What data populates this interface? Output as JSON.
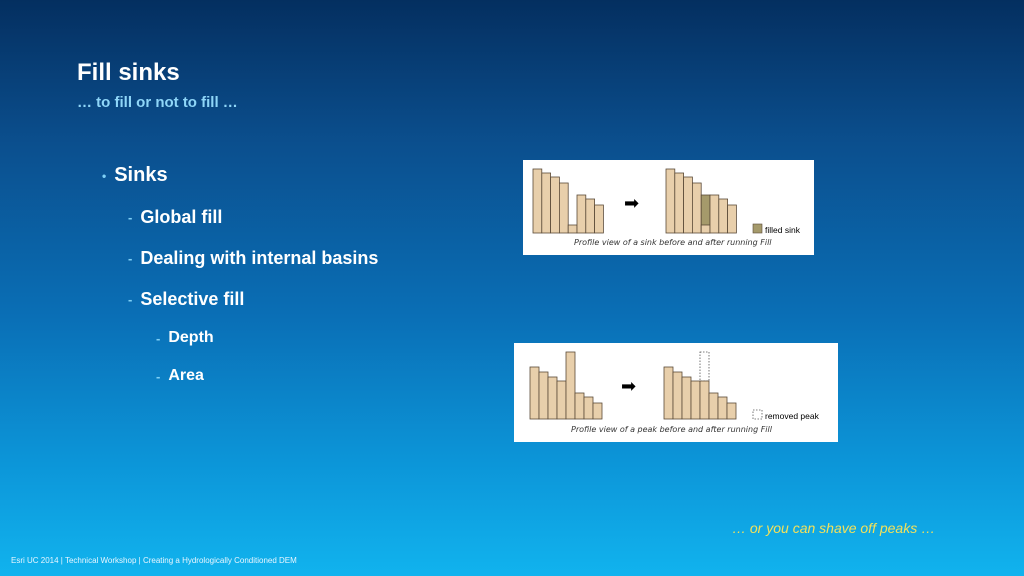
{
  "slide": {
    "title": "Fill sinks",
    "subtitle": "… to fill or not to fill …",
    "bullets": {
      "sinks": "Sinks",
      "global_fill": "Global fill",
      "internal_basins": "Dealing with internal basins",
      "selective_fill": "Selective fill",
      "depth": "Depth",
      "area": "Area"
    },
    "note": "… or you can shave off peaks …",
    "footer": {
      "left": "Esri UC 2014 | Technical Workshop |",
      "right": "Creating a Hydrologically Conditioned DEM"
    }
  },
  "figures": {
    "sink": {
      "caption": "Profile view of a sink before and after running Fill",
      "legend": "filled sink",
      "arrow": "➡",
      "before_heights": [
        64,
        60,
        56,
        50,
        8,
        38,
        34,
        28
      ],
      "after_heights": [
        64,
        60,
        56,
        50,
        38,
        38,
        34,
        28
      ],
      "filled_index": 4
    },
    "peak": {
      "caption": "Profile view of a peak before and after running Fill",
      "legend": "removed peak",
      "arrow": "➡",
      "before_heights": [
        52,
        47,
        42,
        38,
        67,
        26,
        22,
        16
      ],
      "after_heights": [
        52,
        47,
        42,
        38,
        38,
        26,
        22,
        16
      ],
      "removed_index": 4
    },
    "colors": {
      "column_fill": "#e8cfab",
      "column_stroke": "#5a4a38",
      "filled_fill": "#a59a6b",
      "caption_color": "#333333"
    }
  }
}
